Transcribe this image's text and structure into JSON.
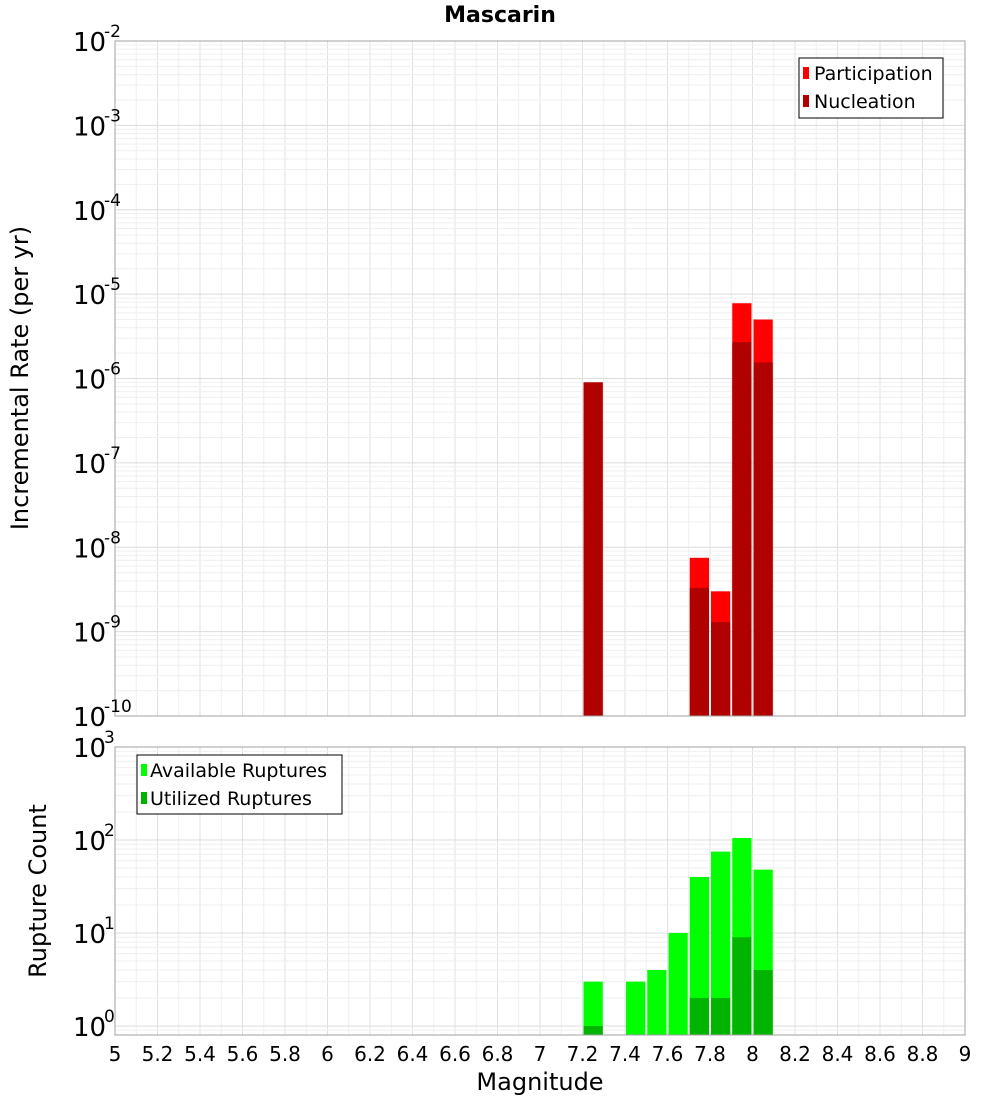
{
  "title": "Mascarin",
  "colors": {
    "participation": "#ff0000",
    "nucleation": "#b00000",
    "available": "#00ff00",
    "utilized": "#00b400",
    "grid": "#e8e8e8",
    "frame": "#a0a0a0"
  },
  "chart_data": [
    {
      "type": "bar",
      "ylabel": "Incremental Rate (per yr)",
      "yscale": "log",
      "ylim": [
        1e-10,
        0.01
      ],
      "ytick_exponents": [
        -10,
        -9,
        -8,
        -7,
        -6,
        -5,
        -4,
        -3,
        -2
      ],
      "legend": {
        "placement": "top-right"
      },
      "x": [
        7.25,
        7.75,
        7.85,
        7.95,
        8.05
      ],
      "series": [
        {
          "name": "Participation",
          "values": [
            9e-07,
            7.5e-09,
            3e-09,
            7.8e-06,
            5e-06
          ]
        },
        {
          "name": "Nucleation",
          "values": [
            9e-07,
            3.3e-09,
            1.3e-09,
            2.7e-06,
            1.55e-06
          ]
        }
      ]
    },
    {
      "type": "bar",
      "ylabel": "Rupture Count",
      "xlabel": "Magnitude",
      "yscale": "log",
      "ylim": [
        0.8,
        1000
      ],
      "ytick_exponents": [
        0,
        1,
        2,
        3
      ],
      "legend": {
        "placement": "top-left"
      },
      "x": [
        7.25,
        7.45,
        7.55,
        7.65,
        7.75,
        7.85,
        7.95,
        8.05
      ],
      "series": [
        {
          "name": "Available Ruptures",
          "values": [
            3,
            3,
            4,
            10,
            40,
            75,
            105,
            48
          ]
        },
        {
          "name": "Utilized Ruptures",
          "values": [
            1,
            0,
            0,
            0,
            2,
            2,
            9,
            4
          ]
        }
      ]
    }
  ],
  "x_axis": {
    "label": "Magnitude",
    "xlim": [
      5,
      9
    ],
    "ticks": [
      "5",
      "5.2",
      "5.4",
      "5.6",
      "5.8",
      "6",
      "6.2",
      "6.4",
      "6.6",
      "6.8",
      "7",
      "7.2",
      "7.4",
      "7.6",
      "7.8",
      "8",
      "8.2",
      "8.4",
      "8.6",
      "8.8",
      "9"
    ],
    "tick_values": [
      5,
      5.2,
      5.4,
      5.6,
      5.8,
      6,
      6.2,
      6.4,
      6.6,
      6.8,
      7,
      7.2,
      7.4,
      7.6,
      7.8,
      8,
      8.2,
      8.4,
      8.6,
      8.8,
      9
    ],
    "bin_width": 0.1
  }
}
